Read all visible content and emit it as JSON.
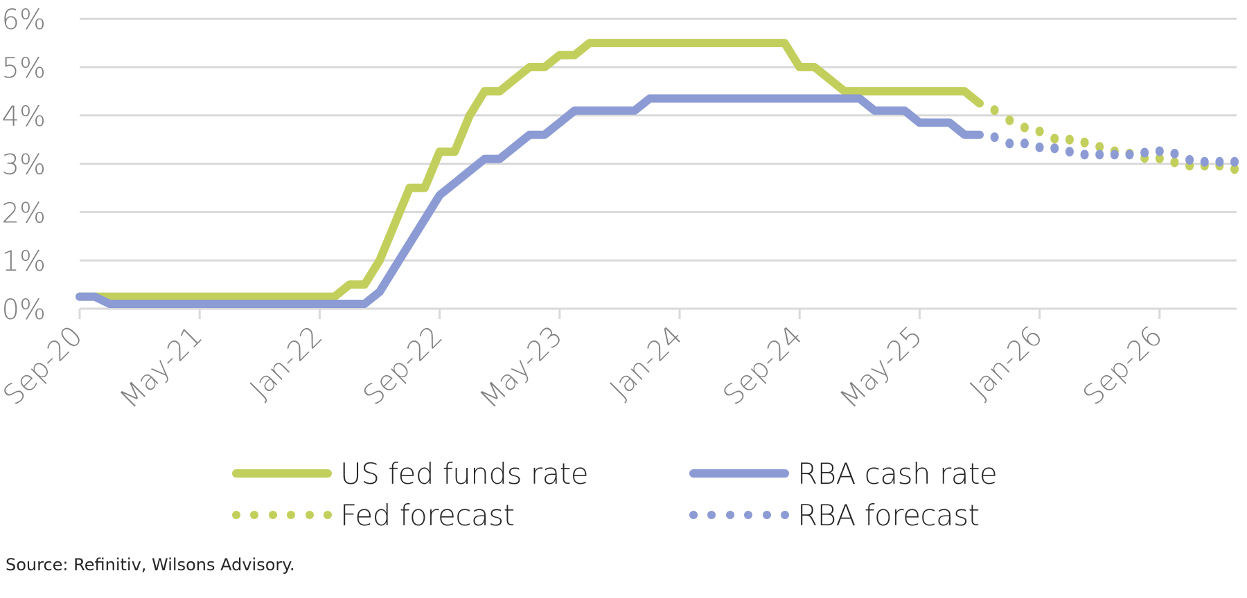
{
  "chart_data": {
    "type": "line",
    "title": "",
    "xlabel": "",
    "ylabel": "",
    "ylim": [
      0,
      6
    ],
    "y_ticks": [
      "0%",
      "1%",
      "2%",
      "3%",
      "4%",
      "5%",
      "6%"
    ],
    "y_tick_values": [
      0,
      1,
      2,
      3,
      4,
      5,
      6
    ],
    "x_tick_labels": [
      "Sep-20",
      "May-21",
      "Jan-22",
      "Sep-22",
      "May-23",
      "Jan-24",
      "Sep-24",
      "May-25",
      "Jan-26",
      "Sep-26"
    ],
    "x_range": [
      "Sep-20",
      "Feb-27"
    ],
    "grid": "horizontal",
    "legend_position": "bottom",
    "colors": {
      "fed": "#c3cf5c",
      "rba": "#8c9bd4",
      "grid": "#d9d9d9",
      "tick_text": "#808080"
    },
    "series": [
      {
        "name": "US fed funds rate",
        "style": "solid",
        "color": "#c3cf5c",
        "start": "Sep-20",
        "values": [
          0.25,
          0.25,
          0.25,
          0.25,
          0.25,
          0.25,
          0.25,
          0.25,
          0.25,
          0.25,
          0.25,
          0.25,
          0.25,
          0.25,
          0.25,
          0.25,
          0.25,
          0.25,
          0.5,
          0.5,
          1.0,
          1.75,
          2.5,
          2.5,
          3.25,
          3.25,
          4.0,
          4.5,
          4.5,
          4.75,
          5.0,
          5.0,
          5.25,
          5.25,
          5.5,
          5.5,
          5.5,
          5.5,
          5.5,
          5.5,
          5.5,
          5.5,
          5.5,
          5.5,
          5.5,
          5.5,
          5.5,
          5.5,
          5.0,
          5.0,
          4.75,
          4.5,
          4.5,
          4.5,
          4.5,
          4.5,
          4.5,
          4.5,
          4.5,
          4.5,
          4.25
        ]
      },
      {
        "name": "RBA cash rate",
        "style": "solid",
        "color": "#8c9bd4",
        "start": "Sep-20",
        "values": [
          0.25,
          0.25,
          0.1,
          0.1,
          0.1,
          0.1,
          0.1,
          0.1,
          0.1,
          0.1,
          0.1,
          0.1,
          0.1,
          0.1,
          0.1,
          0.1,
          0.1,
          0.1,
          0.1,
          0.1,
          0.35,
          0.85,
          1.35,
          1.85,
          2.35,
          2.6,
          2.85,
          3.1,
          3.1,
          3.35,
          3.6,
          3.6,
          3.85,
          4.1,
          4.1,
          4.1,
          4.1,
          4.1,
          4.35,
          4.35,
          4.35,
          4.35,
          4.35,
          4.35,
          4.35,
          4.35,
          4.35,
          4.35,
          4.35,
          4.35,
          4.35,
          4.35,
          4.35,
          4.1,
          4.1,
          4.1,
          3.85,
          3.85,
          3.85,
          3.6,
          3.6
        ]
      },
      {
        "name": "Fed forecast",
        "style": "dotted",
        "color": "#c3cf5c",
        "start": "Oct-25",
        "values": [
          4.11,
          3.9,
          3.75,
          3.67,
          3.52,
          3.5,
          3.44,
          3.35,
          3.26,
          3.21,
          3.12,
          3.11,
          3.03,
          2.96,
          2.96,
          2.96,
          2.89
        ]
      },
      {
        "name": "RBA forecast",
        "style": "dotted",
        "color": "#8c9bd4",
        "start": "Oct-25",
        "values": [
          3.55,
          3.42,
          3.42,
          3.34,
          3.32,
          3.25,
          3.19,
          3.19,
          3.19,
          3.19,
          3.23,
          3.26,
          3.21,
          3.08,
          3.04,
          3.04,
          3.04
        ]
      }
    ]
  },
  "legend": {
    "items": [
      {
        "label": "US fed funds rate",
        "style": "solid",
        "color": "#c3cf5c"
      },
      {
        "label": "RBA cash rate",
        "style": "solid",
        "color": "#8c9bd4"
      },
      {
        "label": "Fed forecast",
        "style": "dotted",
        "color": "#c3cf5c"
      },
      {
        "label": "RBA forecast",
        "style": "dotted",
        "color": "#8c9bd4"
      }
    ]
  },
  "source": "Source: Refinitiv, Wilsons Advisory."
}
